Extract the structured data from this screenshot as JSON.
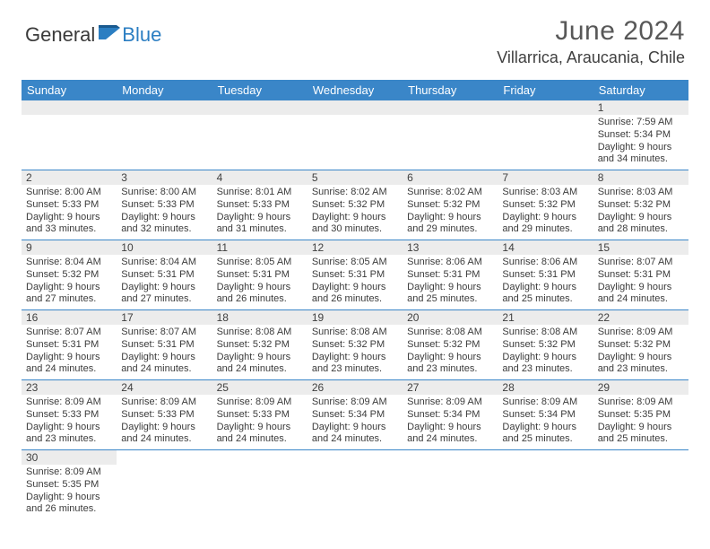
{
  "brand": {
    "part1": "General",
    "part2": "Blue",
    "color_text": "#3a3a3a",
    "color_blue": "#2b7ec2"
  },
  "title": "June 2024",
  "location": "Villarrica, Araucania, Chile",
  "colors": {
    "header_bg": "#3a86c8",
    "header_fg": "#ffffff",
    "daynum_bg": "#ececec",
    "border": "#3a86c8",
    "body_text": "#3b3b3b",
    "title_color": "#585858"
  },
  "weekdays": [
    "Sunday",
    "Monday",
    "Tuesday",
    "Wednesday",
    "Thursday",
    "Friday",
    "Saturday"
  ],
  "weeks": [
    [
      {
        "blank": true
      },
      {
        "blank": true
      },
      {
        "blank": true
      },
      {
        "blank": true
      },
      {
        "blank": true
      },
      {
        "blank": true
      },
      {
        "n": "1",
        "sunrise": "7:59 AM",
        "sunset": "5:34 PM",
        "daylight": "9 hours and 34 minutes."
      }
    ],
    [
      {
        "n": "2",
        "sunrise": "8:00 AM",
        "sunset": "5:33 PM",
        "daylight": "9 hours and 33 minutes."
      },
      {
        "n": "3",
        "sunrise": "8:00 AM",
        "sunset": "5:33 PM",
        "daylight": "9 hours and 32 minutes."
      },
      {
        "n": "4",
        "sunrise": "8:01 AM",
        "sunset": "5:33 PM",
        "daylight": "9 hours and 31 minutes."
      },
      {
        "n": "5",
        "sunrise": "8:02 AM",
        "sunset": "5:32 PM",
        "daylight": "9 hours and 30 minutes."
      },
      {
        "n": "6",
        "sunrise": "8:02 AM",
        "sunset": "5:32 PM",
        "daylight": "9 hours and 29 minutes."
      },
      {
        "n": "7",
        "sunrise": "8:03 AM",
        "sunset": "5:32 PM",
        "daylight": "9 hours and 29 minutes."
      },
      {
        "n": "8",
        "sunrise": "8:03 AM",
        "sunset": "5:32 PM",
        "daylight": "9 hours and 28 minutes."
      }
    ],
    [
      {
        "n": "9",
        "sunrise": "8:04 AM",
        "sunset": "5:32 PM",
        "daylight": "9 hours and 27 minutes."
      },
      {
        "n": "10",
        "sunrise": "8:04 AM",
        "sunset": "5:31 PM",
        "daylight": "9 hours and 27 minutes."
      },
      {
        "n": "11",
        "sunrise": "8:05 AM",
        "sunset": "5:31 PM",
        "daylight": "9 hours and 26 minutes."
      },
      {
        "n": "12",
        "sunrise": "8:05 AM",
        "sunset": "5:31 PM",
        "daylight": "9 hours and 26 minutes."
      },
      {
        "n": "13",
        "sunrise": "8:06 AM",
        "sunset": "5:31 PM",
        "daylight": "9 hours and 25 minutes."
      },
      {
        "n": "14",
        "sunrise": "8:06 AM",
        "sunset": "5:31 PM",
        "daylight": "9 hours and 25 minutes."
      },
      {
        "n": "15",
        "sunrise": "8:07 AM",
        "sunset": "5:31 PM",
        "daylight": "9 hours and 24 minutes."
      }
    ],
    [
      {
        "n": "16",
        "sunrise": "8:07 AM",
        "sunset": "5:31 PM",
        "daylight": "9 hours and 24 minutes."
      },
      {
        "n": "17",
        "sunrise": "8:07 AM",
        "sunset": "5:31 PM",
        "daylight": "9 hours and 24 minutes."
      },
      {
        "n": "18",
        "sunrise": "8:08 AM",
        "sunset": "5:32 PM",
        "daylight": "9 hours and 24 minutes."
      },
      {
        "n": "19",
        "sunrise": "8:08 AM",
        "sunset": "5:32 PM",
        "daylight": "9 hours and 23 minutes."
      },
      {
        "n": "20",
        "sunrise": "8:08 AM",
        "sunset": "5:32 PM",
        "daylight": "9 hours and 23 minutes."
      },
      {
        "n": "21",
        "sunrise": "8:08 AM",
        "sunset": "5:32 PM",
        "daylight": "9 hours and 23 minutes."
      },
      {
        "n": "22",
        "sunrise": "8:09 AM",
        "sunset": "5:32 PM",
        "daylight": "9 hours and 23 minutes."
      }
    ],
    [
      {
        "n": "23",
        "sunrise": "8:09 AM",
        "sunset": "5:33 PM",
        "daylight": "9 hours and 23 minutes."
      },
      {
        "n": "24",
        "sunrise": "8:09 AM",
        "sunset": "5:33 PM",
        "daylight": "9 hours and 24 minutes."
      },
      {
        "n": "25",
        "sunrise": "8:09 AM",
        "sunset": "5:33 PM",
        "daylight": "9 hours and 24 minutes."
      },
      {
        "n": "26",
        "sunrise": "8:09 AM",
        "sunset": "5:34 PM",
        "daylight": "9 hours and 24 minutes."
      },
      {
        "n": "27",
        "sunrise": "8:09 AM",
        "sunset": "5:34 PM",
        "daylight": "9 hours and 24 minutes."
      },
      {
        "n": "28",
        "sunrise": "8:09 AM",
        "sunset": "5:34 PM",
        "daylight": "9 hours and 25 minutes."
      },
      {
        "n": "29",
        "sunrise": "8:09 AM",
        "sunset": "5:35 PM",
        "daylight": "9 hours and 25 minutes."
      }
    ],
    [
      {
        "n": "30",
        "sunrise": "8:09 AM",
        "sunset": "5:35 PM",
        "daylight": "9 hours and 26 minutes."
      },
      {
        "blank": true
      },
      {
        "blank": true
      },
      {
        "blank": true
      },
      {
        "blank": true
      },
      {
        "blank": true
      },
      {
        "blank": true
      }
    ]
  ],
  "labels": {
    "sunrise": "Sunrise:",
    "sunset": "Sunset:",
    "daylight": "Daylight:"
  }
}
